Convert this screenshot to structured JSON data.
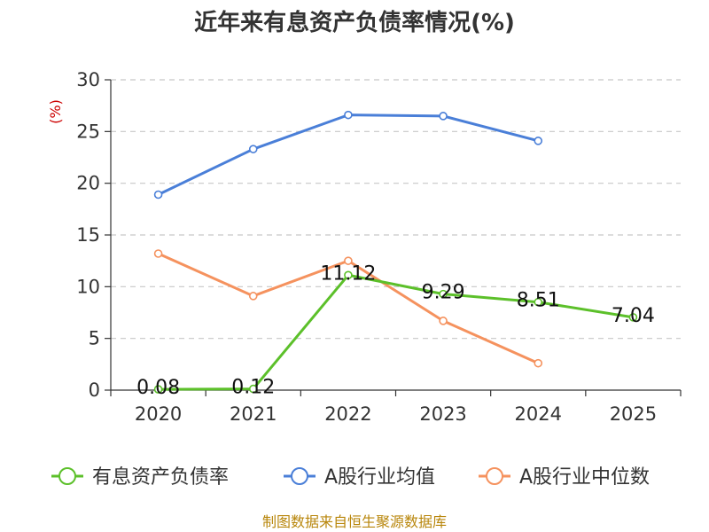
{
  "chart_data": {
    "type": "line",
    "title": "近年来有息资产负债率情况(%)",
    "ylabel": "(%)",
    "xlabel": "",
    "categories": [
      "2020",
      "2021",
      "2022",
      "2023",
      "2024",
      "2025"
    ],
    "ylim": [
      0,
      30
    ],
    "yticks": [
      "0",
      "5",
      "10",
      "15",
      "20",
      "25",
      "30"
    ],
    "grid": true,
    "legend_position": "bottom",
    "series": [
      {
        "name": "有息资产负债率",
        "color": "#5cc02a",
        "values": [
          0.08,
          0.12,
          11.12,
          9.29,
          8.51,
          7.04
        ],
        "labels": [
          "0.08",
          "0.12",
          "11.12",
          "9.29",
          "8.51",
          "7.04"
        ]
      },
      {
        "name": "A股行业均值",
        "color": "#4a7fd8",
        "values": [
          18.9,
          23.3,
          26.6,
          26.5,
          24.1,
          null
        ]
      },
      {
        "name": "A股行业中位数",
        "color": "#f5925e",
        "values": [
          13.2,
          9.1,
          12.5,
          6.7,
          2.6,
          null
        ]
      }
    ],
    "source": "制图数据来自恒生聚源数据库"
  }
}
